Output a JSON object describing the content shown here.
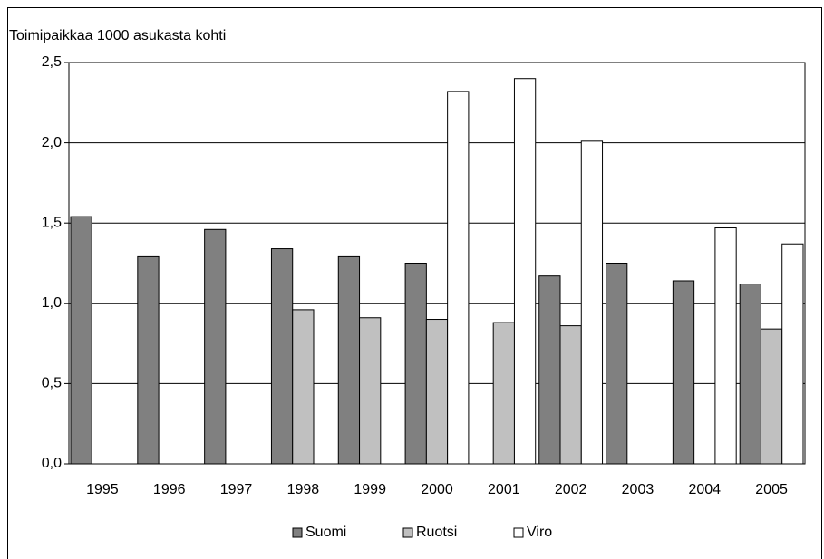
{
  "chart_data": {
    "type": "bar",
    "ylabel": "Toimipaikkaa 1000 asukasta kohti",
    "categories": [
      "1995",
      "1996",
      "1997",
      "1998",
      "1999",
      "2000",
      "2001",
      "2002",
      "2003",
      "2004",
      "2005"
    ],
    "series": [
      {
        "name": "Suomi",
        "color": "#808080",
        "values": [
          1.54,
          1.29,
          1.46,
          1.34,
          1.29,
          1.25,
          null,
          1.17,
          1.25,
          1.14,
          1.12
        ]
      },
      {
        "name": "Ruotsi",
        "color": "#c0c0c0",
        "values": [
          null,
          null,
          null,
          0.96,
          0.91,
          0.9,
          0.88,
          0.86,
          null,
          null,
          0.84
        ]
      },
      {
        "name": "Viro",
        "color": "#ffffff",
        "values": [
          null,
          null,
          null,
          null,
          null,
          2.32,
          2.4,
          2.01,
          null,
          1.47,
          1.37
        ]
      }
    ],
    "ylim": [
      0,
      2.5
    ],
    "yticks": [
      {
        "value": 0,
        "label": "0,0"
      },
      {
        "value": 0.5,
        "label": "0,5"
      },
      {
        "value": 1,
        "label": "1,0"
      },
      {
        "value": 1.5,
        "label": "1,5"
      },
      {
        "value": 2,
        "label": "2,0"
      },
      {
        "value": 2.5,
        "label": "2,5"
      }
    ],
    "grid": true,
    "legend": "bottom"
  }
}
